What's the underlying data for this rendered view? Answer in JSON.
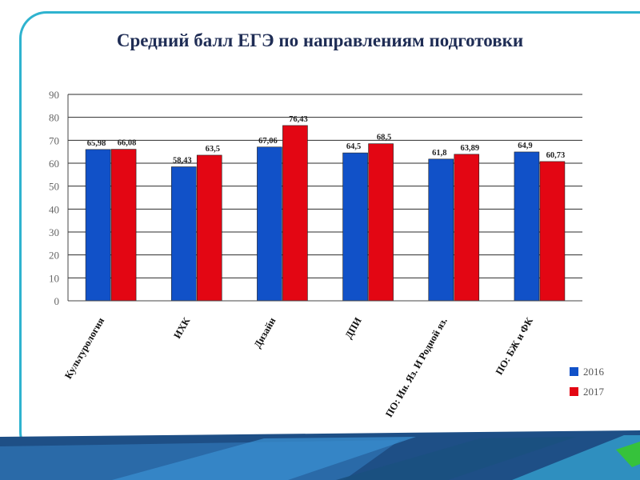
{
  "title": "Средний балл ЕГЭ по направлениям подготовки",
  "colors": {
    "s2016": "#1151c8",
    "s2017": "#e30613",
    "frame": "#2fb3cf",
    "title": "#1f2d55"
  },
  "chart_data": {
    "type": "bar",
    "categories": [
      "Культурология",
      "ИХК",
      "Дизайн",
      "ДПИ",
      "ПО: Ин. Яз. И Родной яз.",
      "ПО: БЖ и ФК"
    ],
    "series": [
      {
        "name": "2016",
        "values": [
          65.98,
          58.43,
          67.06,
          64.5,
          61.8,
          64.9
        ],
        "labels": [
          "65,98",
          "58,43",
          "67,06",
          "64,5",
          "61,8",
          "64,9"
        ]
      },
      {
        "name": "2017",
        "values": [
          66.08,
          63.5,
          76.43,
          68.5,
          63.89,
          60.73
        ],
        "labels": [
          "66,08",
          "63,5",
          "76,43",
          "68,5",
          "63,89",
          "60,73"
        ]
      }
    ],
    "yticks": [
      "0",
      "10",
      "20",
      "30",
      "40",
      "50",
      "60",
      "70",
      "80",
      "90"
    ],
    "ylim": [
      0,
      90
    ],
    "grid": true,
    "legend": "bottom-right"
  }
}
